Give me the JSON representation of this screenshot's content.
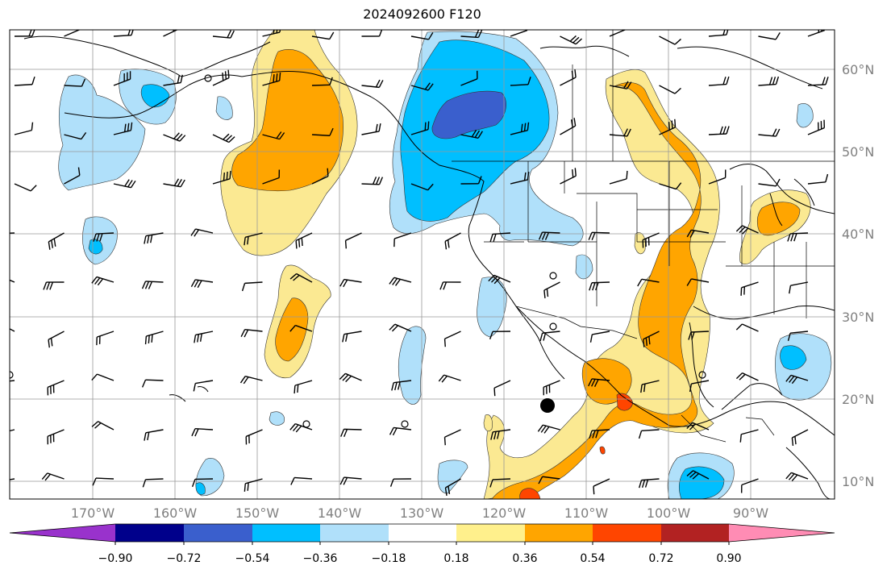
{
  "title": "2024092600 F120",
  "lon_labels": [
    "170°W",
    "160°W",
    "150°W",
    "140°W",
    "130°W",
    "120°W",
    "110°W",
    "100°W",
    "90°W"
  ],
  "lat_labels": [
    "60°N",
    "50°N",
    "40°N",
    "30°N",
    "20°N",
    "10°N"
  ],
  "colorbar": {
    "ticks": [
      "−0.90",
      "−0.72",
      "−0.54",
      "−0.36",
      "−0.18",
      "0.18",
      "0.36",
      "0.54",
      "0.72",
      "0.90"
    ],
    "colors": [
      "#9932cc",
      "#00008b",
      "#3a5fcd",
      "#00bfff",
      "#b0e0fa",
      "#ffffff",
      "#fff08c",
      "#ffa500",
      "#ff4500",
      "#b22222",
      "#ff8cb4"
    ]
  },
  "fill_colors": {
    "neg_light": "#b0e0fa",
    "neg_mid": "#00bfff",
    "neg_strong": "#3a5fcd",
    "pos_light": "#fbe992",
    "pos_mid": "#ffa500",
    "pos_strong": "#ff4500"
  }
}
